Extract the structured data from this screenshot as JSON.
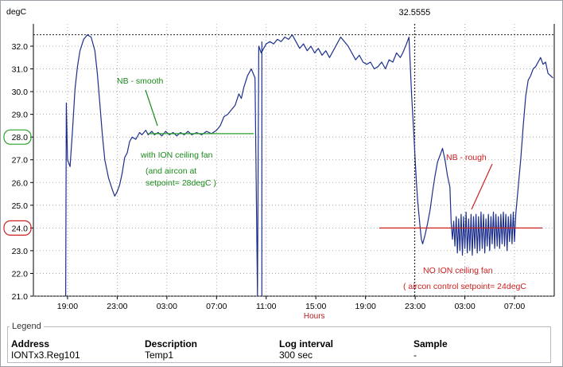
{
  "chart_data": {
    "type": "line",
    "ylabel": "degC",
    "xlabel": "Hours",
    "ylim": [
      21.0,
      32.7
    ],
    "yticks": [
      "21.0",
      "22.0",
      "23.0",
      "24.0",
      "25.0",
      "26.0",
      "27.0",
      "28.0",
      "29.0",
      "30.0",
      "31.0",
      "32.0"
    ],
    "highlighted_ticks": [
      {
        "label": "28.0",
        "color": "#2aa02a"
      },
      {
        "label": "24.0",
        "color": "#cc2020"
      }
    ],
    "xticks": [
      {
        "label": "19:00",
        "t": 0
      },
      {
        "label": "23:00",
        "t": 4
      },
      {
        "label": "03:00",
        "t": 8
      },
      {
        "label": "07:00",
        "t": 12
      },
      {
        "label": "11:00",
        "t": 16
      },
      {
        "label": "15:00",
        "t": 20
      },
      {
        "label": "19:00",
        "t": 24
      },
      {
        "label": "23:00",
        "t": 28
      },
      {
        "label": "03:00",
        "t": 32
      },
      {
        "label": "07:00",
        "t": 36
      }
    ],
    "xlim": [
      -2.75,
      39.2
    ],
    "cursor": {
      "label": "32.5555",
      "t": 27.95,
      "y": 32.5
    },
    "reference_lines": [
      {
        "y": 28.15,
        "t_start": 6.5,
        "t_end": 15.0,
        "color": "#2aa02a"
      },
      {
        "y": 24.0,
        "t_start": 25.1,
        "t_end": 41.6,
        "color": "#cc2020"
      }
    ],
    "annotations": [
      {
        "text": "NB - smooth",
        "color": "#1a8a1a"
      },
      {
        "text": "with ION ceiling fan",
        "color": "#1a8a1a"
      },
      {
        "text": "(and aircon at",
        "color": "#1a8a1a"
      },
      {
        "text": "setpoint= 28degC )",
        "color": "#1a8a1a"
      },
      {
        "text": "NB - rough",
        "color": "#cc2020"
      },
      {
        "text": "NO ION ceiling fan",
        "color": "#cc2020"
      },
      {
        "text": "( aircon control setpoint= 24degC",
        "color": "#cc2020"
      }
    ],
    "series": [
      {
        "color": "#1c2f8c",
        "points": [
          [
            -0.15,
            21.0
          ],
          [
            -0.1,
            29.5
          ],
          [
            0.0,
            27.0
          ],
          [
            0.2,
            26.7
          ],
          [
            0.4,
            28.3
          ],
          [
            0.6,
            30.1
          ],
          [
            0.8,
            31.1
          ],
          [
            1.0,
            31.8
          ],
          [
            1.3,
            32.3
          ],
          [
            1.6,
            32.5
          ],
          [
            1.9,
            32.4
          ],
          [
            2.2,
            31.8
          ],
          [
            2.4,
            30.8
          ],
          [
            2.6,
            29.5
          ],
          [
            2.8,
            28.1
          ],
          [
            3.0,
            27.0
          ],
          [
            3.3,
            26.2
          ],
          [
            3.6,
            25.7
          ],
          [
            3.8,
            25.4
          ],
          [
            4.0,
            25.6
          ],
          [
            4.2,
            25.9
          ],
          [
            4.4,
            26.4
          ],
          [
            4.6,
            27.1
          ],
          [
            4.8,
            27.3
          ],
          [
            5.0,
            27.8
          ],
          [
            5.2,
            28.0
          ],
          [
            5.5,
            27.9
          ],
          [
            5.8,
            28.2
          ],
          [
            6.0,
            28.1
          ],
          [
            6.3,
            28.3
          ],
          [
            6.5,
            28.1
          ],
          [
            6.8,
            28.25
          ],
          [
            7.0,
            28.1
          ],
          [
            7.3,
            28.2
          ],
          [
            7.6,
            28.05
          ],
          [
            7.9,
            28.25
          ],
          [
            8.2,
            28.1
          ],
          [
            8.5,
            28.2
          ],
          [
            8.8,
            28.05
          ],
          [
            9.1,
            28.2
          ],
          [
            9.4,
            28.1
          ],
          [
            9.7,
            28.25
          ],
          [
            10.0,
            28.1
          ],
          [
            10.4,
            28.2
          ],
          [
            10.8,
            28.1
          ],
          [
            11.2,
            28.25
          ],
          [
            11.6,
            28.15
          ],
          [
            12.0,
            28.3
          ],
          [
            12.3,
            28.5
          ],
          [
            12.6,
            28.9
          ],
          [
            12.9,
            29.0
          ],
          [
            13.2,
            29.2
          ],
          [
            13.5,
            29.4
          ],
          [
            13.8,
            29.9
          ],
          [
            14.0,
            29.7
          ],
          [
            14.2,
            30.2
          ],
          [
            14.5,
            30.7
          ],
          [
            14.8,
            31.0
          ],
          [
            15.1,
            30.6
          ],
          [
            15.3,
            21.0
          ],
          [
            15.4,
            32.0
          ],
          [
            15.6,
            31.7
          ],
          [
            15.8,
            31.9
          ],
          [
            16.0,
            32.1
          ],
          [
            16.3,
            32.2
          ],
          [
            16.6,
            32.1
          ],
          [
            16.9,
            32.3
          ],
          [
            17.2,
            32.2
          ],
          [
            17.5,
            32.4
          ],
          [
            17.8,
            32.3
          ],
          [
            18.1,
            32.5
          ],
          [
            18.4,
            32.2
          ],
          [
            18.7,
            31.9
          ],
          [
            19.0,
            32.1
          ],
          [
            19.3,
            31.8
          ],
          [
            19.6,
            32.0
          ],
          [
            19.9,
            31.7
          ],
          [
            20.2,
            31.9
          ],
          [
            20.5,
            31.6
          ],
          [
            20.8,
            31.8
          ],
          [
            21.1,
            31.5
          ],
          [
            21.4,
            31.8
          ],
          [
            21.7,
            32.1
          ],
          [
            22.0,
            32.4
          ],
          [
            22.3,
            32.2
          ],
          [
            22.6,
            32.0
          ],
          [
            22.9,
            31.7
          ],
          [
            23.2,
            31.4
          ],
          [
            23.5,
            31.6
          ],
          [
            23.8,
            31.3
          ],
          [
            24.1,
            31.2
          ],
          [
            24.4,
            31.3
          ],
          [
            24.7,
            31.0
          ],
          [
            25.0,
            31.1
          ],
          [
            25.3,
            31.3
          ],
          [
            25.6,
            31.0
          ],
          [
            25.9,
            31.4
          ],
          [
            26.2,
            31.3
          ],
          [
            26.5,
            31.7
          ],
          [
            26.8,
            31.5
          ],
          [
            27.0,
            31.7
          ],
          [
            27.3,
            32.1
          ],
          [
            27.5,
            32.4
          ],
          [
            27.6,
            31.2
          ],
          [
            27.7,
            30.0
          ],
          [
            27.8,
            29.0
          ],
          [
            27.9,
            28.0
          ],
          [
            28.0,
            27.0
          ],
          [
            28.1,
            26.0
          ],
          [
            28.2,
            25.2
          ],
          [
            28.3,
            24.6
          ],
          [
            28.4,
            24.0
          ],
          [
            28.5,
            23.5
          ],
          [
            28.6,
            23.3
          ],
          [
            28.8,
            23.7
          ],
          [
            29.0,
            24.2
          ],
          [
            29.2,
            24.8
          ],
          [
            29.4,
            25.6
          ],
          [
            29.6,
            26.3
          ],
          [
            29.8,
            26.9
          ],
          [
            30.0,
            27.2
          ],
          [
            30.2,
            27.5
          ],
          [
            30.4,
            27.0
          ],
          [
            30.6,
            26.3
          ],
          [
            30.8,
            25.8
          ],
          [
            30.9,
            24.2
          ],
          [
            31.0,
            23.5
          ],
          [
            31.1,
            24.3
          ],
          [
            31.2,
            23.2
          ],
          [
            31.3,
            24.5
          ],
          [
            31.4,
            22.9
          ],
          [
            31.5,
            24.4
          ],
          [
            31.6,
            23.0
          ],
          [
            31.7,
            24.6
          ],
          [
            31.8,
            22.8
          ],
          [
            31.9,
            24.5
          ],
          [
            32.0,
            23.1
          ],
          [
            32.1,
            24.7
          ],
          [
            32.2,
            22.9
          ],
          [
            32.3,
            24.4
          ],
          [
            32.4,
            23.0
          ],
          [
            32.5,
            24.6
          ],
          [
            32.6,
            22.8
          ],
          [
            32.7,
            24.5
          ],
          [
            32.8,
            23.1
          ],
          [
            32.9,
            24.6
          ],
          [
            33.0,
            22.9
          ],
          [
            33.1,
            24.5
          ],
          [
            33.2,
            23.0
          ],
          [
            33.3,
            24.7
          ],
          [
            33.4,
            23.1
          ],
          [
            33.5,
            24.6
          ],
          [
            33.6,
            22.9
          ],
          [
            33.7,
            24.4
          ],
          [
            33.8,
            23.2
          ],
          [
            33.9,
            24.6
          ],
          [
            34.0,
            23.0
          ],
          [
            34.1,
            24.5
          ],
          [
            34.2,
            23.3
          ],
          [
            34.3,
            24.7
          ],
          [
            34.4,
            23.1
          ],
          [
            34.5,
            24.6
          ],
          [
            34.6,
            23.2
          ],
          [
            34.7,
            24.5
          ],
          [
            34.8,
            23.1
          ],
          [
            34.9,
            24.6
          ],
          [
            35.0,
            23.3
          ],
          [
            35.1,
            24.7
          ],
          [
            35.2,
            23.2
          ],
          [
            35.3,
            24.6
          ],
          [
            35.4,
            23.0
          ],
          [
            35.5,
            24.5
          ],
          [
            35.6,
            23.4
          ],
          [
            35.7,
            24.6
          ],
          [
            35.8,
            23.3
          ],
          [
            35.9,
            24.7
          ],
          [
            36.0,
            23.4
          ],
          [
            36.1,
            24.6
          ],
          [
            36.3,
            25.8
          ],
          [
            36.5,
            27.0
          ],
          [
            36.7,
            28.5
          ],
          [
            36.9,
            29.8
          ],
          [
            37.1,
            30.5
          ],
          [
            37.3,
            30.7
          ],
          [
            37.5,
            31.0
          ],
          [
            37.7,
            31.1
          ],
          [
            37.9,
            31.3
          ],
          [
            38.1,
            31.5
          ],
          [
            38.3,
            31.2
          ],
          [
            38.5,
            31.3
          ],
          [
            38.7,
            30.8
          ],
          [
            38.9,
            30.7
          ],
          [
            39.1,
            30.6
          ]
        ]
      }
    ]
  },
  "legend": {
    "title": "Legend",
    "headers": [
      "Address",
      "Description",
      "Log interval",
      "Sample"
    ],
    "row": [
      "IONTx3.Reg101",
      "Temp1",
      "300 sec",
      "-"
    ]
  }
}
